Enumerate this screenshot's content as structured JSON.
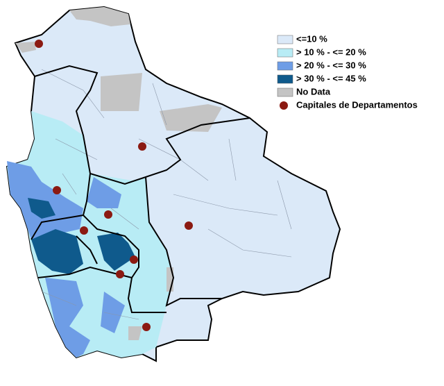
{
  "legend": {
    "items": [
      {
        "label": "<=10 %",
        "color": "#dbe9f8",
        "symbol": "box"
      },
      {
        "label": "> 10 % - <= 20 %",
        "color": "#b8ecf5",
        "symbol": "box"
      },
      {
        "label": "> 20 % - <= 30 %",
        "color": "#6e9de6",
        "symbol": "box"
      },
      {
        "label": "> 30 % - <= 45 %",
        "color": "#0f5a8c",
        "symbol": "box"
      },
      {
        "label": "No Data",
        "color": "#c4c4c4",
        "symbol": "box"
      },
      {
        "label": "Capitales de Departamentos",
        "color": "#8b1a12",
        "symbol": "dot"
      }
    ]
  }
}
